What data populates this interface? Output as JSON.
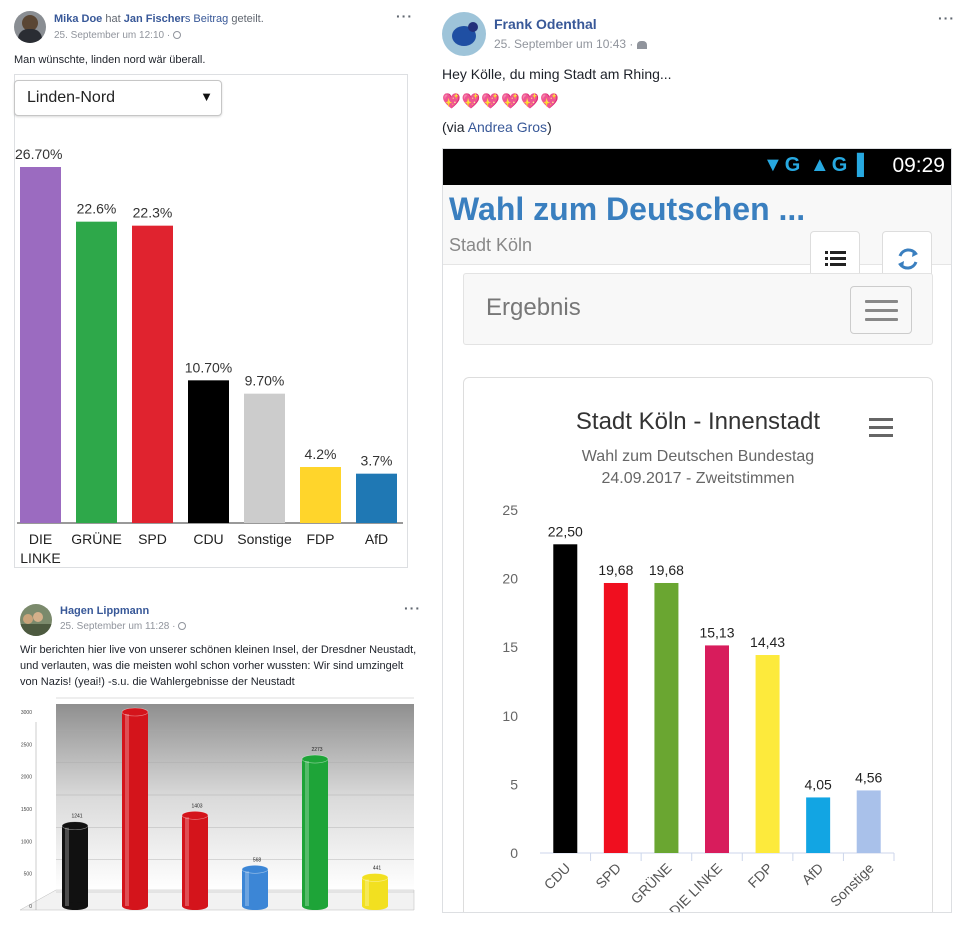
{
  "post1": {
    "author": "Mika Doe",
    "verb": "hat",
    "shared_from": "Jan Fischer",
    "shared_suffix": "s Beitrag",
    "shared_word": "geteilt.",
    "timestamp": "25. September um 12:10 ·",
    "more": "···",
    "message": "Man wünschte, linden nord wär überall.",
    "select_value": "Linden-Nord",
    "select_arrow": "▼"
  },
  "post2": {
    "author": "Hagen Lippmann",
    "timestamp": "25. September um 11:28 ·",
    "more": "···",
    "message": "Wir berichten hier live von unserer schönen kleinen Insel, der Dresdner Neustadt, und verlauten, was die meisten wohl schon vorher wussten: Wir sind umzingelt von Nazis! (yeai!) -s.u. die Wahlergebnisse der Neustadt"
  },
  "post3": {
    "author": "Frank Odenthal",
    "timestamp": "25. September um 10:43 ·",
    "more": "···",
    "message": "Hey Kölle, du ming Stadt am Rhing...",
    "hearts": "💖💖💖💖💖💖",
    "via_prefix": "(via ",
    "via_name": "Andrea Gros",
    "via_suffix": ")",
    "phone": {
      "time": "09:29",
      "status_icons": "▼G ▲G ▌",
      "app_title": "Wahl zum Deutschen ...",
      "app_subtitle": "Stadt Köln",
      "section_label": "Ergebnis"
    }
  },
  "colors": {
    "fb_link": "#385898",
    "linke": "#9b6bc0",
    "gruene": "#2ea84a",
    "spd": "#e0232f",
    "cdu": "#000000",
    "sonstige": "#cccccc",
    "fdp": "#ffd52b",
    "afd": "#1f78b4"
  },
  "chart_data": [
    {
      "type": "bar",
      "categories": [
        "DIE LINKE",
        "GRÜNE",
        "SPD",
        "CDU",
        "Sonstige",
        "FDP",
        "AfD"
      ],
      "values": [
        26.7,
        22.6,
        22.3,
        10.7,
        9.7,
        4.2,
        3.7
      ],
      "labels": [
        "26.70%",
        "22.6%",
        "22.3%",
        "10.70%",
        "9.70%",
        "4.2%",
        "3.7%"
      ],
      "colors": [
        "#9b6bc0",
        "#2ea84a",
        "#e0232f",
        "#000000",
        "#cccccc",
        "#ffd52b",
        "#1f78b4"
      ],
      "title": "",
      "ylim": [
        0,
        27
      ]
    },
    {
      "type": "bar",
      "title": "Stadt Köln - Innenstadt",
      "subtitle_line1": "Wahl zum Deutschen Bundestag",
      "subtitle_line2": "24.09.2017 - Zweitstimmen",
      "categories": [
        "CDU",
        "SPD",
        "GRÜNE",
        "DIE LINKE",
        "FDP",
        "AfD",
        "Sonstige"
      ],
      "values": [
        22.5,
        19.68,
        19.68,
        15.13,
        14.43,
        4.05,
        4.56
      ],
      "labels": [
        "22,50",
        "19,68",
        "19,68",
        "15,13",
        "14,43",
        "4,05",
        "4,56"
      ],
      "colors": [
        "#000000",
        "#f00f1f",
        "#6aa631",
        "#d81c5c",
        "#fdea3c",
        "#12a5e3",
        "#a9c1ea"
      ],
      "yticks": [
        "0",
        "5",
        "10",
        "15",
        "20",
        "25"
      ],
      "ylim": [
        0,
        25
      ]
    },
    {
      "type": "bar",
      "title": "",
      "values": [
        1241,
        3000,
        1403,
        568,
        2273,
        441
      ],
      "labels": [
        "1241",
        "",
        "1403",
        "568",
        "2273",
        "441"
      ],
      "colors": [
        "#111111",
        "#d4141b",
        "#d4141b",
        "#3c86d6",
        "#1ea438",
        "#f2e020"
      ],
      "yticks": [
        "0",
        "500",
        "1000",
        "1500",
        "2000",
        "2500",
        "3000"
      ],
      "ylim": [
        0,
        3000
      ]
    }
  ]
}
